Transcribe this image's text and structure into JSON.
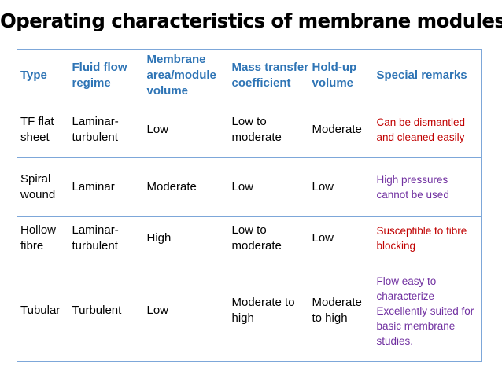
{
  "title": "Operating characteristics of membrane modules",
  "headers": [
    "Type",
    "Fluid flow regime",
    "Membrane area/module volume",
    "Mass transfer coefficient",
    "Hold-up volume",
    "Special remarks"
  ],
  "rows": [
    {
      "type": "TF flat sheet",
      "regime": "Laminar-turbulent",
      "area": "Low",
      "mass_transfer": "Low to moderate",
      "holdup": "Moderate",
      "remark": "Can be dismantled and cleaned easily",
      "remark_color": "#c00000"
    },
    {
      "type": "Spiral wound",
      "regime": "Laminar",
      "area": "Moderate",
      "mass_transfer": "Low",
      "holdup": "Low",
      "remark": "High pressures cannot be used",
      "remark_color": "#7030a0"
    },
    {
      "type": "Hollow fibre",
      "regime": "Laminar-turbulent",
      "area": "High",
      "mass_transfer": "Low to moderate",
      "holdup": "Low",
      "remark": "Susceptible to fibre blocking",
      "remark_color": "#c00000"
    },
    {
      "type": "Tubular",
      "regime": "Turbulent",
      "area": "Low",
      "mass_transfer": "Moderate to high",
      "holdup": "Moderate to high",
      "remark": "Flow easy to characterize Excellently suited for basic membrane studies.",
      "remark_color": "#7030a0"
    }
  ]
}
